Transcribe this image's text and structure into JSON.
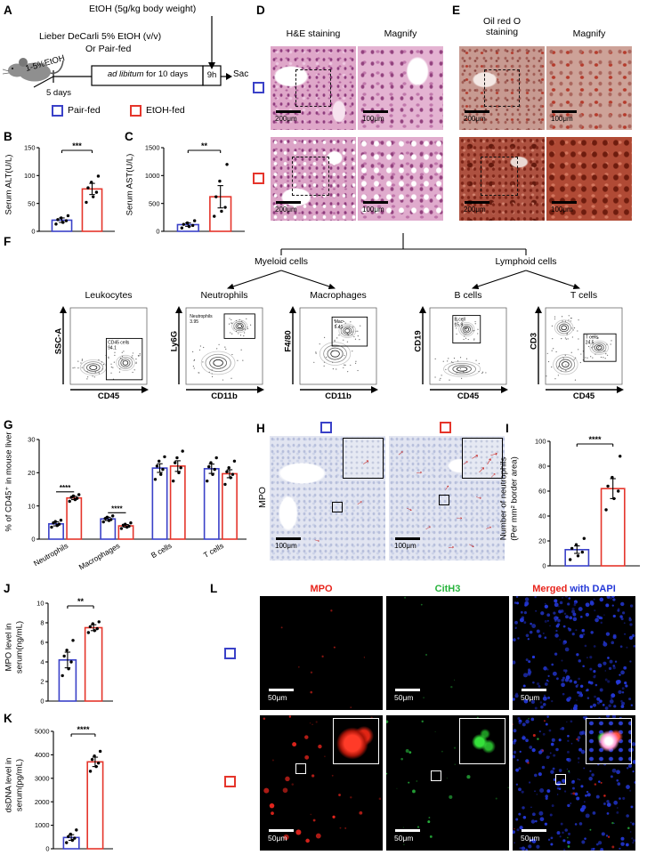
{
  "colors": {
    "pair_fed": "#3a41c8",
    "etoh_fed": "#e5352b"
  },
  "channel_colors": {
    "mpo": "#e8251d",
    "cith3": "#27b43c",
    "dapi": "#2438d8"
  },
  "panelA": {
    "label": "A",
    "binge_text": "EtOH (5g/kg body weight)",
    "diet_line1": "Lieber DeCarli 5% EtOH (v/v)",
    "diet_line2": "Or Pair-fed",
    "ramp_text": "1-5%EtOH",
    "adlib_italic": "ad libitum",
    "adlib_rest": " for 10 days",
    "nineh": "9h",
    "sac": "Sac",
    "five_days": "5 days",
    "legend": [
      {
        "label": "Pair-fed"
      },
      {
        "label": "EtOH-fed"
      }
    ]
  },
  "panelD": {
    "label": "D",
    "col1": "H&E staining",
    "col2": "Magnify",
    "scale_left": "200μm",
    "scale_right": "100μm"
  },
  "panelE": {
    "label": "E",
    "col1_line1": "Oil red O",
    "col1_line2": "staining",
    "col2": "Magnify",
    "scale_left": "200μm",
    "scale_right": "100μm"
  },
  "panelF": {
    "label": "F",
    "myeloid": "Myeloid cells",
    "lymphoid": "Lymphoid cells",
    "plots": [
      {
        "title": "Leukocytes",
        "x": "CD45",
        "y": "SSC-A",
        "gate": "CD45 cells",
        "pct": "94.1"
      },
      {
        "title": "Neutrophils",
        "x": "CD11b",
        "y": "Ly6G",
        "gate": "Neutrophils",
        "pct": "3.95"
      },
      {
        "title": "Macrophages",
        "x": "CD11b",
        "y": "F4/80",
        "gate": "Mac",
        "pct": "5.41"
      },
      {
        "title": "B cells",
        "x": "CD45",
        "y": "CD19",
        "gate": "B cell",
        "pct": "15.9"
      },
      {
        "title": "T cells",
        "x": "CD45",
        "y": "CD3",
        "gate": "T cells",
        "pct": "24.5"
      }
    ]
  },
  "panelH": {
    "label": "H",
    "row_label": "MPO",
    "scale": "100μm"
  },
  "panelL": {
    "label": "L",
    "col_mpo": "MPO",
    "col_cith3": "CitH3",
    "col_merged": "Merged",
    "col_merged2": " with DAPI",
    "scale": "50μm"
  },
  "chart_data": [
    {
      "panel": "B",
      "type": "bar",
      "ylabel": "Serum ALT(U/L)",
      "ylim": [
        0,
        150
      ],
      "yticks": [
        0,
        50,
        100,
        150
      ],
      "series_names": [
        "Pair-fed",
        "EtOH-fed"
      ],
      "values": [
        20,
        76
      ],
      "errors": [
        4,
        10
      ],
      "dots": [
        [
          13,
          16,
          19,
          21,
          24,
          28
        ],
        [
          52,
          62,
          70,
          78,
          88,
          99
        ]
      ],
      "sig": "***"
    },
    {
      "panel": "C",
      "type": "bar",
      "ylabel": "Serum AST(U/L)",
      "ylim": [
        0,
        1500
      ],
      "yticks": [
        0,
        500,
        1000,
        1500
      ],
      "series_names": [
        "Pair-fed",
        "EtOH-fed"
      ],
      "values": [
        120,
        620
      ],
      "errors": [
        30,
        200
      ],
      "dots": [
        [
          60,
          85,
          105,
          125,
          150,
          190
        ],
        [
          270,
          360,
          430,
          620,
          900,
          1200
        ]
      ],
      "sig": "**"
    },
    {
      "panel": "G",
      "type": "grouped_bar",
      "ylabel": "% of CD45⁺ in mouse liver",
      "ylim": [
        0,
        30
      ],
      "yticks": [
        0,
        10,
        20,
        30
      ],
      "categories": [
        "Neutrophils",
        "Macrophages",
        "B cells",
        "T cells"
      ],
      "series": [
        {
          "name": "Pair-fed",
          "values": [
            4.6,
            6.1,
            21.4,
            21.2
          ],
          "errors": [
            0.6,
            0.5,
            1.3,
            1.4
          ],
          "dots": [
            [
              3.6,
              4.1,
              4.5,
              4.9,
              5.3,
              5.7
            ],
            [
              5.2,
              5.6,
              5.9,
              6.2,
              6.6,
              7.0
            ],
            [
              18,
              19.5,
              21,
              22,
              23.5,
              24.8
            ],
            [
              17.5,
              19.5,
              21,
              21.8,
              23,
              24.5
            ]
          ]
        },
        {
          "name": "EtOH-fed",
          "values": [
            12.4,
            4.0,
            22.0,
            19.7
          ],
          "errors": [
            0.5,
            0.4,
            1.6,
            1.2
          ],
          "dots": [
            [
              11.4,
              11.9,
              12.3,
              12.6,
              13.0,
              13.4
            ],
            [
              3.2,
              3.6,
              3.9,
              4.2,
              4.5,
              4.9
            ],
            [
              17.5,
              20,
              21.5,
              23,
              24.5,
              26.5
            ],
            [
              16.5,
              18.5,
              19.5,
              20.3,
              21.5,
              23.5
            ]
          ]
        }
      ],
      "sig": [
        {
          "group": 0,
          "label": "****"
        },
        {
          "group": 1,
          "label": "****"
        }
      ]
    },
    {
      "panel": "I",
      "type": "bar",
      "ylabel": [
        "Number of neutrophils",
        "(Per mm² border area)"
      ],
      "ylim": [
        0,
        100
      ],
      "yticks": [
        0,
        20,
        40,
        60,
        80,
        100
      ],
      "series_names": [
        "Pair-fed",
        "EtOH-fed"
      ],
      "values": [
        13,
        62
      ],
      "errors": [
        3,
        8
      ],
      "dots": [
        [
          5,
          8,
          11,
          14,
          17,
          22
        ],
        [
          45,
          54,
          60,
          64,
          71,
          88
        ]
      ],
      "sig": "****"
    },
    {
      "panel": "J",
      "type": "bar",
      "ylabel": [
        "MPO level in",
        "serum(ng/mL)"
      ],
      "ylim": [
        0,
        10
      ],
      "yticks": [
        0,
        2,
        4,
        6,
        8,
        10
      ],
      "series_names": [
        "Pair-fed",
        "EtOH-fed"
      ],
      "values": [
        4.2,
        7.5
      ],
      "errors": [
        0.8,
        0.3
      ],
      "dots": [
        [
          2.6,
          3.3,
          4.0,
          4.6,
          5.2,
          6.2
        ],
        [
          7.0,
          7.2,
          7.4,
          7.6,
          7.9,
          8.1
        ]
      ],
      "sig": "**"
    },
    {
      "panel": "K",
      "type": "bar",
      "ylabel": [
        "dsDNA level in",
        "serum(pg/mL)"
      ],
      "ylim": [
        0,
        5000
      ],
      "yticks": [
        0,
        1000,
        2000,
        3000,
        4000,
        5000
      ],
      "series_names": [
        "Pair-fed",
        "EtOH-fed"
      ],
      "values": [
        480,
        3700
      ],
      "errors": [
        120,
        200
      ],
      "dots": [
        [
          260,
          360,
          450,
          520,
          620,
          800
        ],
        [
          3300,
          3500,
          3650,
          3800,
          3950,
          4150
        ]
      ],
      "sig": "****"
    }
  ]
}
